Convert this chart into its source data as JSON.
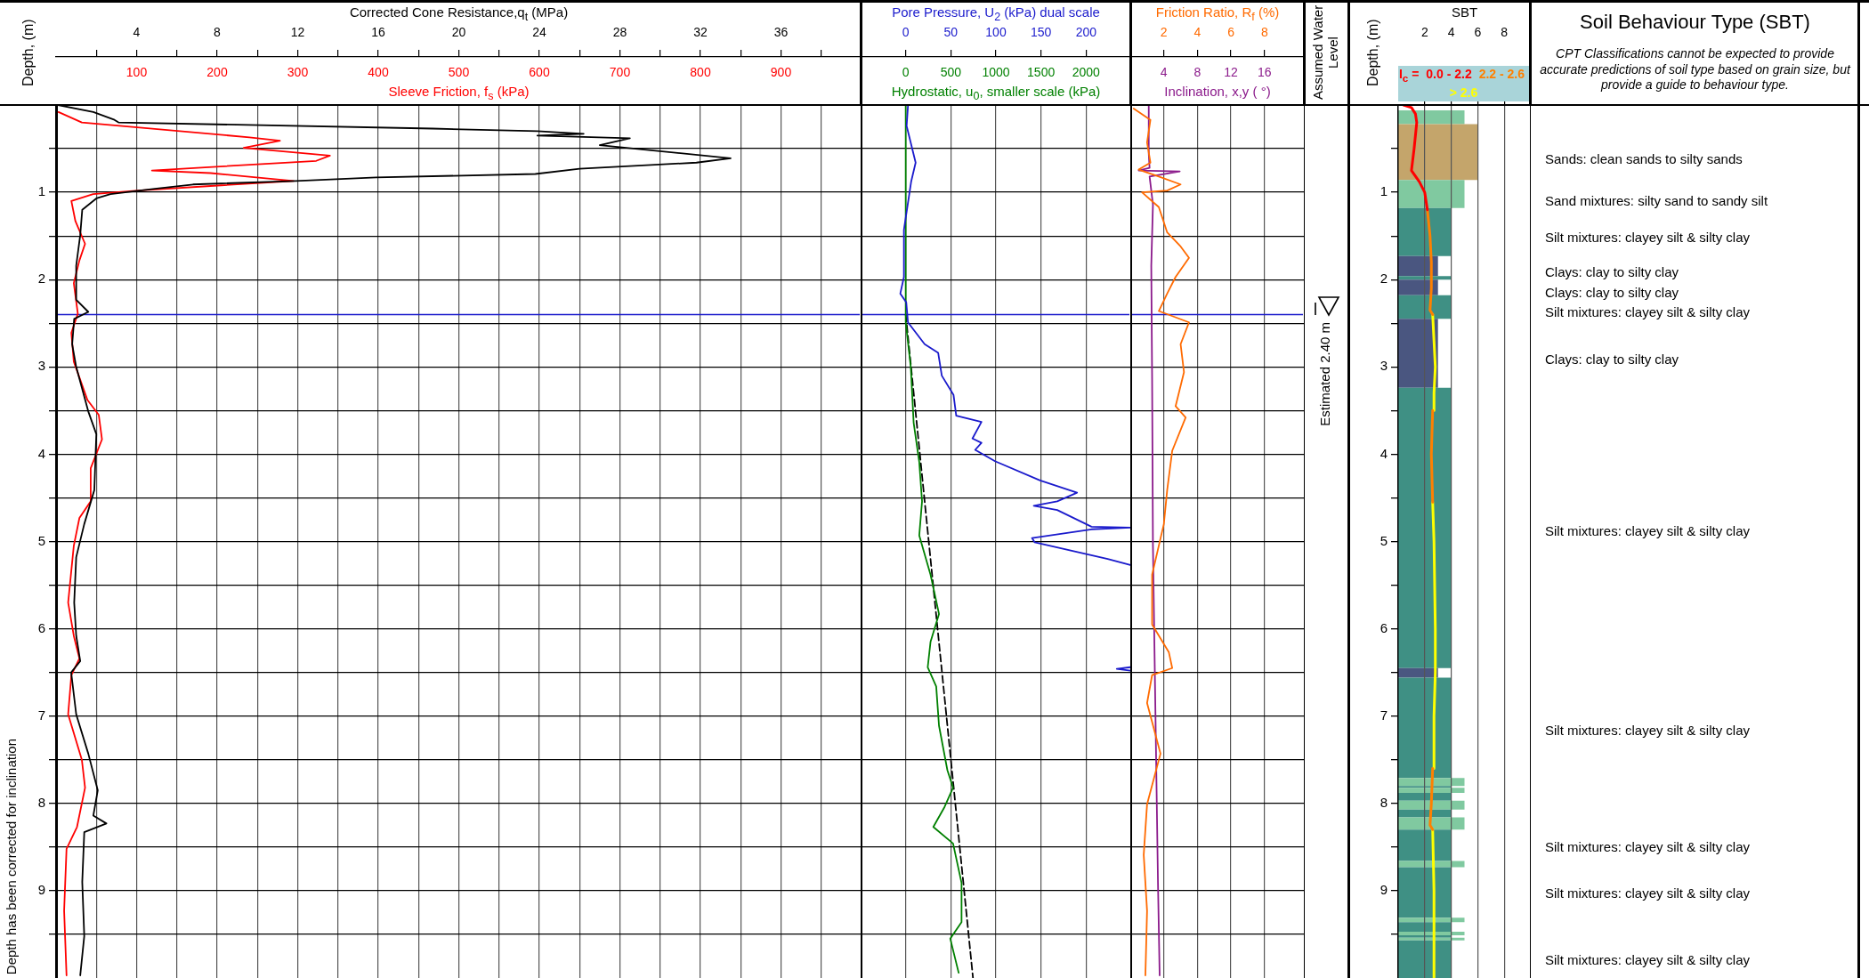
{
  "chart_data": [
    {
      "type": "line",
      "xlabel": "Corrected Cone Resistance,q$_{t}$ (MPa)",
      "x2label": "Sleeve Friction, f$_{s}$ (kPa)",
      "ylabel": "Depth, (m)",
      "xlim": [
        0,
        40
      ],
      "xticks": [
        {
          "value": 2,
          "label": null
        },
        4,
        {
          "value": 6,
          "label": null
        },
        8,
        {
          "value": 10,
          "label": null
        },
        12,
        {
          "value": 14,
          "label": null
        },
        16,
        {
          "value": 18,
          "label": null
        },
        20,
        {
          "value": 22,
          "label": null
        },
        24,
        {
          "value": 26,
          "label": null
        },
        28,
        {
          "value": 30,
          "label": null
        },
        32,
        {
          "value": 34,
          "label": null
        },
        36,
        {
          "value": 38,
          "label": null
        }
      ],
      "x2lim": [
        0,
        1000
      ],
      "x2ticks": [
        100,
        200,
        300,
        400,
        500,
        600,
        700,
        800,
        900
      ],
      "ylim": [
        10,
        0
      ],
      "yticks": [
        {
          "value": 0.5,
          "label": null
        },
        1,
        {
          "value": 1.5,
          "label": null
        },
        2,
        {
          "value": 2.5,
          "label": null
        },
        3,
        {
          "value": 3.5,
          "label": null
        },
        4,
        {
          "value": 4.5,
          "label": null
        },
        5,
        {
          "value": 5.5,
          "label": null
        },
        6,
        {
          "value": 6.5,
          "label": null
        },
        7,
        {
          "value": 7.5,
          "label": null
        },
        8,
        {
          "value": 8.5,
          "label": null
        },
        9,
        {
          "value": 9.5,
          "label": null
        }
      ],
      "grid": true,
      "marker": "none",
      "ref_lines": [
        {
          "axis": "y",
          "value": 2.4,
          "color": "#1a1acc"
        }
      ],
      "annotations": [
        "Depth has been corrected for inclination"
      ],
      "series": [
        {
          "color": "#000000",
          "x": [
            0.1,
            1.85,
            2.9,
            3.1,
            18.7,
            23.9,
            26.2,
            23.9,
            28.5,
            27,
            33.5,
            31.8,
            26,
            23.8,
            15.9,
            11.9,
            6.8,
            4.9,
            2.7,
            2.0,
            1.3,
            1.2,
            1.0,
            1.0,
            1.6,
            0.9,
            0.8,
            1.0,
            1.6,
            2.0,
            1.9,
            1.4,
            1.0,
            0.9,
            1.0,
            1.2,
            0.75,
            1.0,
            1.6,
            2.07,
            1.85,
            2.5,
            1.4,
            1.3,
            1.4,
            1.2
          ],
          "values": [
            0,
            0.08,
            0.17,
            0.2,
            0.27,
            0.3,
            0.33,
            0.35,
            0.38,
            0.46,
            0.61,
            0.66,
            0.73,
            0.79,
            0.83,
            0.87,
            0.91,
            0.96,
            1.02,
            1.07,
            1.2,
            1.49,
            1.84,
            2.23,
            2.37,
            2.45,
            2.74,
            3.0,
            3.51,
            3.77,
            4.41,
            4.8,
            5.18,
            5.7,
            6.08,
            6.37,
            6.5,
            6.98,
            7.43,
            7.85,
            8.14,
            8.23,
            8.33,
            8.9,
            9.52,
            9.97
          ]
        },
        {
          "color": "#ff0000",
          "axis": "x2",
          "x": [
            3,
            32,
            240,
            278,
            233,
            340,
            323,
            119,
            192,
            295,
            205,
            102,
            46,
            19,
            24,
            36,
            29,
            22,
            27,
            19,
            22,
            39,
            53,
            57,
            43,
            43,
            29,
            22,
            15,
            22,
            29,
            19,
            15,
            32,
            36,
            26,
            13,
            10,
            13
          ],
          "values": [
            0.08,
            0.2,
            0.37,
            0.41,
            0.49,
            0.58,
            0.64,
            0.75,
            0.78,
            0.87,
            0.92,
            0.98,
            1.02,
            1.1,
            1.33,
            1.59,
            1.78,
            2.04,
            2.39,
            2.61,
            2.94,
            3.38,
            3.55,
            3.83,
            4.16,
            4.54,
            4.73,
            5.05,
            5.7,
            6.08,
            6.34,
            6.53,
            6.98,
            7.5,
            7.82,
            8.27,
            8.52,
            9.23,
            9.97
          ]
        }
      ]
    },
    {
      "type": "line",
      "xlabel": "Pore Pressure, U$_{2}$ (kPa) dual scale",
      "x2label": "Hydrostatic, u$_{0}$, smaller scale (kPa)",
      "xlim": [
        -50,
        250
      ],
      "xticks": [
        0,
        50,
        100,
        150,
        200
      ],
      "x2lim": [
        -500,
        2500
      ],
      "x2ticks": [
        0,
        500,
        1000,
        1500,
        2000
      ],
      "ylim": [
        10,
        0
      ],
      "yticks": [
        {
          "value": 0.5,
          "label": null
        },
        1,
        {
          "value": 1.5,
          "label": null
        },
        2,
        {
          "value": 2.5,
          "label": null
        },
        3,
        {
          "value": 3.5,
          "label": null
        },
        4,
        {
          "value": 4.5,
          "label": null
        },
        5,
        {
          "value": 5.5,
          "label": null
        },
        6,
        {
          "value": 6.5,
          "label": null
        },
        7,
        {
          "value": 7.5,
          "label": null
        },
        8,
        {
          "value": 8.5,
          "label": null
        },
        9,
        {
          "value": 9.5,
          "label": null
        }
      ],
      "tick_labels": "x",
      "grid": true,
      "marker": "none",
      "ref_lines": [
        {
          "axis": "y",
          "value": 2.4,
          "color": "#1a1acc"
        }
      ],
      "series": [
        {
          "color": "#1a1acc",
          "x": [
            2.5,
            1,
            11,
            6,
            -2,
            -2,
            -6,
            0.6,
            2.5,
            21,
            36,
            40,
            53,
            56,
            84,
            74,
            84,
            77,
            99,
            149,
            190,
            168,
            142,
            168,
            206,
            249,
            206,
            140,
            143,
            224,
            249,
            null,
            249,
            234,
            249
          ],
          "values": [
            0.01,
            0.24,
            0.66,
            0.88,
            1.43,
            1.97,
            2.16,
            2.26,
            2.49,
            2.74,
            2.84,
            3.1,
            3.32,
            3.56,
            3.63,
            3.82,
            3.87,
            3.95,
            4.08,
            4.3,
            4.44,
            4.54,
            4.59,
            4.64,
            4.83,
            4.84,
            4.86,
            4.96,
            5.01,
            5.2,
            5.27,
            null,
            6.44,
            6.46,
            6.48
          ]
        },
        {
          "color": "#008000",
          "axis": "x2",
          "x": [
            0,
            0,
            56,
            88,
            150,
            181,
            150,
            275,
            369,
            275,
            244,
            338,
            369,
            462,
            525,
            431,
            306,
            525,
            619,
            619,
            494,
            587
          ],
          "values": [
            0,
            2.49,
            3.0,
            3.64,
            4.09,
            4.54,
            4.93,
            5.38,
            5.83,
            6.15,
            6.44,
            6.66,
            7.11,
            7.62,
            7.82,
            8.04,
            8.27,
            8.46,
            8.91,
            9.36,
            9.55,
            9.94
          ]
        },
        {
          "color": "#000000",
          "line_style": "dashed",
          "x": [
            0,
            74.6
          ],
          "values": [
            2.4,
            10
          ]
        }
      ]
    },
    {
      "type": "line",
      "xlabel": "Friction Ratio, R$_{f}$ (%)",
      "x2label": "Inclination, x,y ( °)",
      "xlim": [
        0,
        10.4
      ],
      "xticks": [
        2,
        4,
        6,
        8
      ],
      "x2lim": [
        0,
        20.8
      ],
      "x2ticks": [
        4,
        8,
        12,
        16
      ],
      "ylim": [
        10,
        0
      ],
      "yticks": [
        {
          "value": 0.5,
          "label": null
        },
        1,
        {
          "value": 1.5,
          "label": null
        },
        2,
        {
          "value": 2.5,
          "label": null
        },
        3,
        {
          "value": 3.5,
          "label": null
        },
        4,
        {
          "value": 4.5,
          "label": null
        },
        5,
        {
          "value": 5.5,
          "label": null
        },
        6,
        {
          "value": 6.5,
          "label": null
        },
        7,
        {
          "value": 7.5,
          "label": null
        },
        8,
        {
          "value": 8.5,
          "label": null
        },
        9,
        {
          "value": 9.5,
          "label": null
        }
      ],
      "tick_labels": "x",
      "grid": true,
      "marker": "none",
      "ref_lines": [
        {
          "axis": "y",
          "value": 2.4,
          "color": "#1a1acc"
        }
      ],
      "series": [
        {
          "color": "#ff6a00",
          "x": [
            0.2,
            1.2,
            1.0,
            1.2,
            0.5,
            1.7,
            3.0,
            2.2,
            0.7,
            1.7,
            2.2,
            3.0,
            3.5,
            2.7,
            2.2,
            1.7,
            3.5,
            3.0,
            3.2,
            2.7,
            3.3,
            2.5,
            2.2,
            2.0,
            1.3,
            1.3,
            2.3,
            2.5,
            1.3,
            1.0,
            1.8,
            1.0,
            0.8,
            1.0,
            0.9
          ],
          "values": [
            0.04,
            0.17,
            0.43,
            0.66,
            0.74,
            0.82,
            0.91,
            0.98,
            1.0,
            1.17,
            1.46,
            1.62,
            1.75,
            1.97,
            2.16,
            2.36,
            2.49,
            2.74,
            3.06,
            3.45,
            3.58,
            3.96,
            4.41,
            4.8,
            5.38,
            5.95,
            6.27,
            6.45,
            6.53,
            6.85,
            7.43,
            8.01,
            8.59,
            9.23,
            9.97
          ]
        },
        {
          "color": "#8b1a8b",
          "axis": "x2",
          "x": [
            2.2,
            2.2,
            2.3,
            1.0,
            5.9,
            2.3,
            2.7,
            2.5,
            2.6,
            2.7,
            3.0,
            3.3,
            3.5
          ],
          "values": [
            0.01,
            0.56,
            0.72,
            0.75,
            0.76,
            0.82,
            1.14,
            1.84,
            3.13,
            5.05,
            6.98,
            8.91,
            9.97
          ]
        }
      ]
    },
    {
      "type": "other",
      "title": "Assumed Water Level",
      "annotations": [
        "Estimated 2.40 m"
      ]
    },
    {
      "type": "line",
      "orientation": "horizontal",
      "xlabel": "SBT",
      "ylabel": "Depth, (m)",
      "xlim": [
        0,
        10
      ],
      "xticks": [
        2,
        4,
        6,
        8
      ],
      "ylim": [
        10,
        0
      ],
      "yticks": [
        {
          "value": 0.5,
          "label": null
        },
        1,
        {
          "value": 1.5,
          "label": null
        },
        2,
        {
          "value": 2.5,
          "label": null
        },
        3,
        {
          "value": 3.5,
          "label": null
        },
        4,
        {
          "value": 4.5,
          "label": null
        },
        5,
        {
          "value": 5.5,
          "label": null
        },
        6,
        {
          "value": 6.5,
          "label": null
        },
        7,
        {
          "value": 7.5,
          "label": null
        },
        8,
        {
          "value": 8.5,
          "label": null
        },
        9,
        {
          "value": 9.5,
          "label": null
        }
      ],
      "grid": "x",
      "marker": "none",
      "legend": "top",
      "legend_title": "I$_{c}$ = ",
      "series": [
        {
          "type": "histogram",
          "bins": [
            0.06,
            0.22,
            0.86,
            1.18,
            1.73,
            1.96,
            2.0,
            2.18,
            2.45,
            3.24,
            6.45,
            6.56,
            7.71,
            7.8,
            7.82,
            7.88,
            7.97,
            8.07,
            8.16,
            8.3,
            8.66,
            8.73,
            9.31,
            9.36,
            9.47,
            9.51,
            9.54,
            9.57,
            10
          ],
          "values": [
            5,
            6,
            5,
            4,
            3,
            4,
            3,
            4,
            3,
            4,
            3,
            4,
            5,
            4,
            5,
            4,
            5,
            4,
            5,
            4,
            5,
            4,
            5,
            4,
            5,
            4,
            5,
            4
          ],
          "colors": [
            "#80c9a0",
            "#c4a56b",
            "#80c9a0",
            "#3f9084",
            "#4a5680",
            "#3f9084",
            "#4a5680",
            "#3f9084",
            "#4a5680",
            "#3f9084",
            "#4a5680",
            "#3f9084",
            "#80c9a0",
            "#3f9084",
            "#80c9a0",
            "#3f9084",
            "#80c9a0",
            "#3f9084",
            "#80c9a0",
            "#3f9084",
            "#80c9a0",
            "#3f9084",
            "#80c9a0",
            "#3f9084",
            "#80c9a0",
            "#3f9084",
            "#80c9a0",
            "#3f9084"
          ]
        },
        {
          "name": "0.0 - 2.2",
          "color": "#ff0000",
          "values": [
            0.4,
            1.0,
            1.3,
            1.4,
            1.2,
            1.0,
            1.6,
            2.0,
            2.2
          ],
          "x": [
            0,
            0.03,
            0.1,
            0.2,
            0.5,
            0.75,
            0.88,
            1.0,
            1.2
          ]
        },
        {
          "name": "2.2 - 2.6",
          "color": "#ff8000",
          "values": [
            2.2,
            2.4,
            2.5,
            2.5,
            2.4,
            2.6,
            null,
            2.6,
            2.5,
            2.6,
            null,
            2.6,
            2.5,
            2.4,
            2.6
          ],
          "x": [
            1.2,
            1.5,
            1.8,
            2.1,
            2.35,
            2.4,
            null,
            3.5,
            4.0,
            4.55,
            null,
            7.6,
            8.0,
            8.25,
            8.3
          ]
        },
        {
          "name": "> 2.6",
          "color": "#ffff00",
          "values": [
            2.6,
            2.7,
            2.8,
            2.7,
            2.7,
            null,
            2.6,
            2.7,
            2.8,
            2.8,
            2.7,
            2.7,
            null,
            2.6,
            2.7,
            2.7
          ],
          "x": [
            2.4,
            2.7,
            3.0,
            3.3,
            3.5,
            null,
            4.55,
            5.0,
            6.0,
            6.5,
            7.0,
            7.6,
            null,
            8.3,
            9.0,
            10.0
          ]
        }
      ]
    },
    {
      "type": "other",
      "title": "Soil Behaviour Type (SBT)",
      "subtitle": "CPT Classifications cannot be expected to provide accurate predictions of soil type based on grain size, but provide a guide to behaviour type.",
      "annotations": [
        "Sands: clean sands to silty sands",
        "Sand mixtures: silty sand to sandy silt",
        "Silt mixtures: clayey silt & silty clay",
        "Clays: clay to silty clay",
        "Clays: clay to silty clay",
        "Silt mixtures: clayey silt & silty clay",
        "Clays: clay to silty clay",
        "Silt mixtures: clayey silt & silty clay",
        "Silt mixtures: clayey silt & silty clay",
        "Silt mixtures: clayey silt & silty clay",
        "Silt mixtures: clayey silt & silty clay",
        "Silt mixtures: clayey silt & silty clay"
      ]
    }
  ]
}
